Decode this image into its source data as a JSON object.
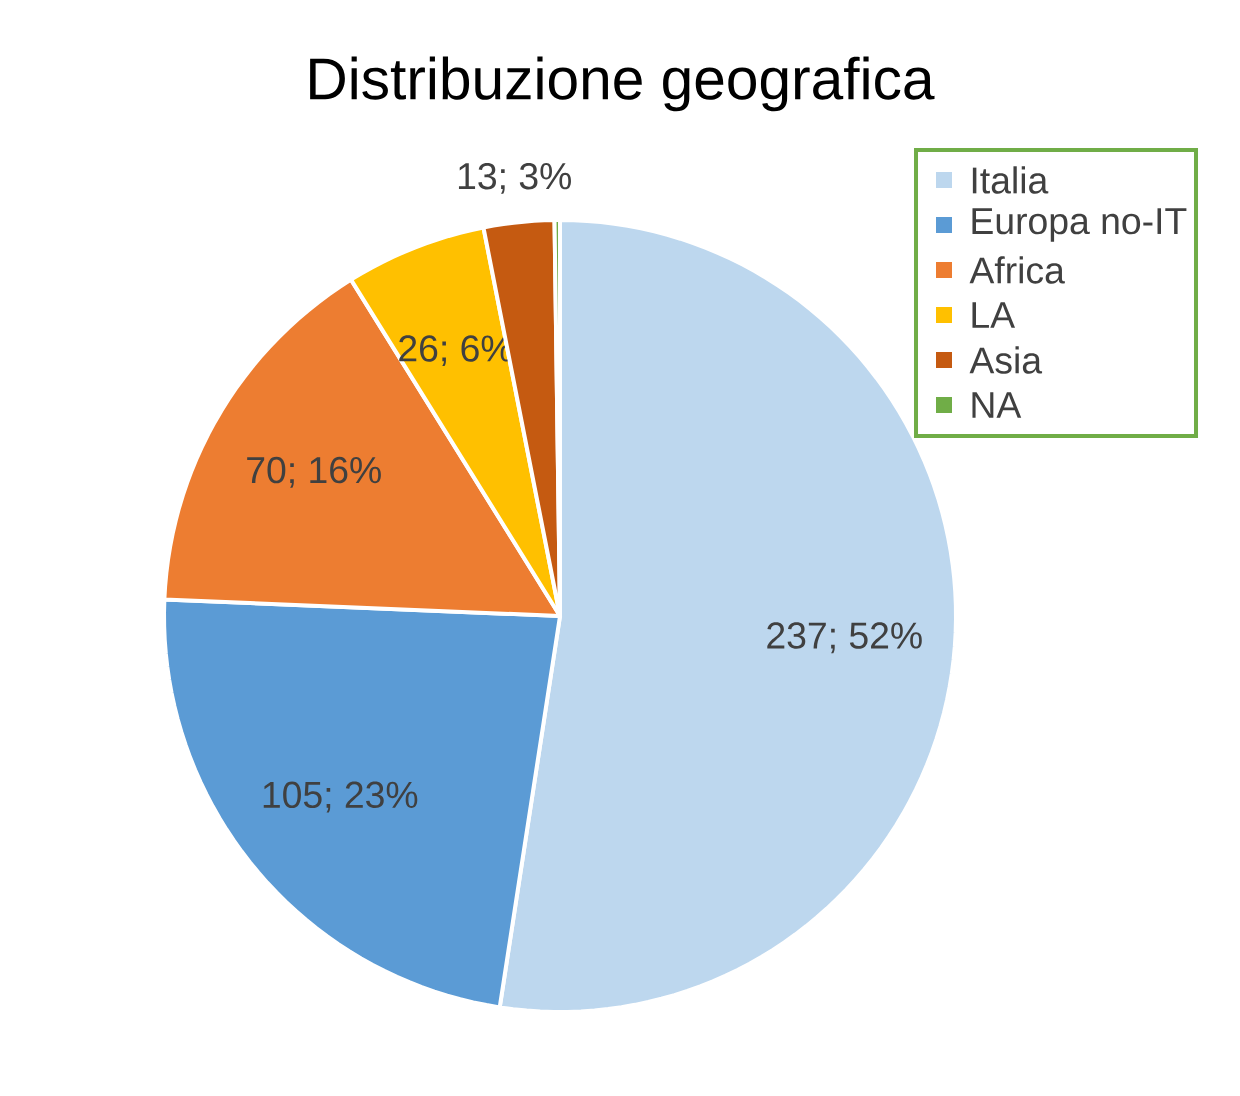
{
  "chart_data": {
    "type": "pie",
    "title": "Distribuzione geografica",
    "categories": [
      "Italia",
      "Europa no-IT",
      "Africa",
      "LA",
      "Asia",
      "NA"
    ],
    "values": [
      237,
      105,
      70,
      26,
      13,
      1
    ],
    "colors": [
      "#bdd7ee",
      "#5b9bd5",
      "#ed7d31",
      "#ffc000",
      "#c55a11",
      "#70ad47"
    ],
    "value_labels": [
      "237; 52%",
      "105; 23%",
      "70; 16%",
      "26; 6%",
      "13; 3%",
      null
    ],
    "legend": "top right"
  }
}
